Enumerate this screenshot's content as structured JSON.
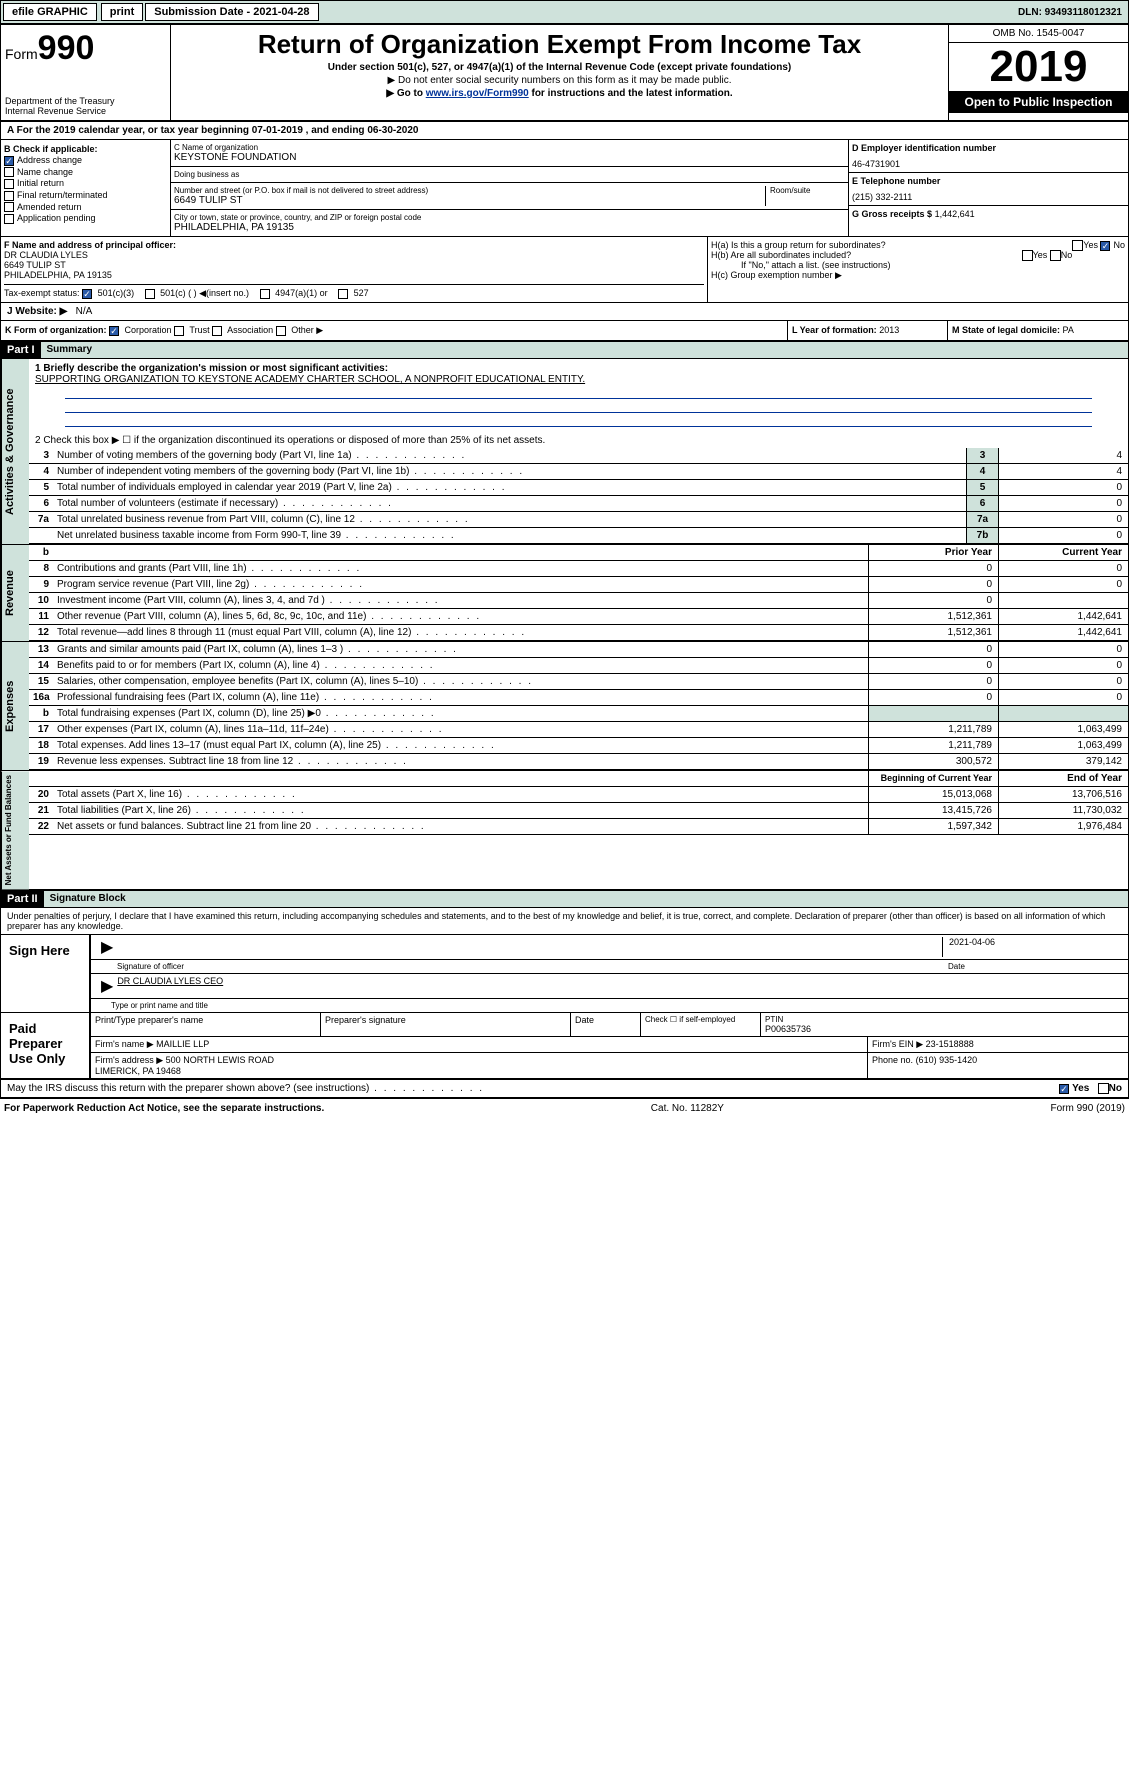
{
  "topbar": {
    "efile": "efile GRAPHIC",
    "print": "print",
    "subdate_label": "Submission Date - 2021-04-28",
    "dln": "DLN: 93493118012321"
  },
  "header": {
    "form_prefix": "Form",
    "form_num": "990",
    "dept": "Department of the Treasury\nInternal Revenue Service",
    "title": "Return of Organization Exempt From Income Tax",
    "sub1": "Under section 501(c), 527, or 4947(a)(1) of the Internal Revenue Code (except private foundations)",
    "sub2": "▶ Do not enter social security numbers on this form as it may be made public.",
    "sub3_pre": "▶ Go to ",
    "sub3_link": "www.irs.gov/Form990",
    "sub3_post": " for instructions and the latest information.",
    "omb": "OMB No. 1545-0047",
    "year": "2019",
    "open": "Open to Public Inspection"
  },
  "row_a": "A For the 2019 calendar year, or tax year beginning 07-01-2019    , and ending 06-30-2020",
  "col_b": {
    "label": "B Check if applicable:",
    "items": [
      "Address change",
      "Name change",
      "Initial return",
      "Final return/terminated",
      "Amended return",
      "Application pending"
    ],
    "checked": [
      true,
      false,
      false,
      false,
      false,
      false
    ]
  },
  "col_c": {
    "name_lbl": "C Name of organization",
    "name": "KEYSTONE FOUNDATION",
    "dba_lbl": "Doing business as",
    "dba": "",
    "addr_lbl": "Number and street (or P.O. box if mail is not delivered to street address)",
    "room_lbl": "Room/suite",
    "addr": "6649 TULIP ST",
    "city_lbl": "City or town, state or province, country, and ZIP or foreign postal code",
    "city": "PHILADELPHIA, PA  19135"
  },
  "col_d": {
    "ein_lbl": "D Employer identification number",
    "ein": "46-4731901",
    "tel_lbl": "E Telephone number",
    "tel": "(215) 332-2111",
    "gross_lbl": "G Gross receipts $",
    "gross": "1,442,641"
  },
  "row_f": {
    "f_lbl": "F Name and address of principal officer:",
    "f_val": "DR CLAUDIA LYLES\n6649 TULIP ST\nPHILADELPHIA, PA  19135",
    "ha": "H(a)  Is this a group return for subordinates?",
    "hb": "H(b)  Are all subordinates included?",
    "hb_note": "If \"No,\" attach a list. (see instructions)",
    "hc": "H(c)  Group exemption number ▶",
    "yes": "Yes",
    "no": "No"
  },
  "tax_status": {
    "lbl": "Tax-exempt status:",
    "opts": [
      "501(c)(3)",
      "501(c) (  ) ◀(insert no.)",
      "4947(a)(1) or",
      "527"
    ]
  },
  "website": {
    "lbl": "J   Website: ▶",
    "val": "N/A"
  },
  "row_k": {
    "k": "K Form of organization:",
    "opts": [
      "Corporation",
      "Trust",
      "Association",
      "Other ▶"
    ],
    "l_lbl": "L Year of formation:",
    "l_val": "2013",
    "m_lbl": "M State of legal domicile:",
    "m_val": "PA"
  },
  "part1": {
    "label": "Part I",
    "title": "Summary"
  },
  "summary": {
    "line1_lbl": "1  Briefly describe the organization's mission or most significant activities:",
    "line1_val": "SUPPORTING ORGANIZATION TO KEYSTONE ACADEMY CHARTER SCHOOL, A NONPROFIT EDUCATIONAL ENTITY.",
    "line2": "2   Check this box ▶ ☐  if the organization discontinued its operations or disposed of more than 25% of its net assets.",
    "rows_simple": [
      {
        "n": "3",
        "t": "Number of voting members of the governing body (Part VI, line 1a)",
        "box": "3",
        "v": "4"
      },
      {
        "n": "4",
        "t": "Number of independent voting members of the governing body (Part VI, line 1b)",
        "box": "4",
        "v": "4"
      },
      {
        "n": "5",
        "t": "Total number of individuals employed in calendar year 2019 (Part V, line 2a)",
        "box": "5",
        "v": "0"
      },
      {
        "n": "6",
        "t": "Total number of volunteers (estimate if necessary)",
        "box": "6",
        "v": "0"
      },
      {
        "n": "7a",
        "t": "Total unrelated business revenue from Part VIII, column (C), line 12",
        "box": "7a",
        "v": "0"
      },
      {
        "n": "",
        "t": "Net unrelated business taxable income from Form 990-T, line 39",
        "box": "7b",
        "v": "0"
      }
    ],
    "col_hdr_b": "b",
    "col_prior": "Prior Year",
    "col_current": "Current Year",
    "rows_rev": [
      {
        "n": "8",
        "t": "Contributions and grants (Part VIII, line 1h)",
        "p": "0",
        "c": "0"
      },
      {
        "n": "9",
        "t": "Program service revenue (Part VIII, line 2g)",
        "p": "0",
        "c": "0"
      },
      {
        "n": "10",
        "t": "Investment income (Part VIII, column (A), lines 3, 4, and 7d )",
        "p": "0",
        "c": ""
      },
      {
        "n": "11",
        "t": "Other revenue (Part VIII, column (A), lines 5, 6d, 8c, 9c, 10c, and 11e)",
        "p": "1,512,361",
        "c": "1,442,641"
      },
      {
        "n": "12",
        "t": "Total revenue—add lines 8 through 11 (must equal Part VIII, column (A), line 12)",
        "p": "1,512,361",
        "c": "1,442,641"
      }
    ],
    "rows_exp": [
      {
        "n": "13",
        "t": "Grants and similar amounts paid (Part IX, column (A), lines 1–3 )",
        "p": "0",
        "c": "0"
      },
      {
        "n": "14",
        "t": "Benefits paid to or for members (Part IX, column (A), line 4)",
        "p": "0",
        "c": "0"
      },
      {
        "n": "15",
        "t": "Salaries, other compensation, employee benefits (Part IX, column (A), lines 5–10)",
        "p": "0",
        "c": "0"
      },
      {
        "n": "16a",
        "t": "Professional fundraising fees (Part IX, column (A), line 11e)",
        "p": "0",
        "c": "0"
      },
      {
        "n": "b",
        "t": "Total fundraising expenses (Part IX, column (D), line 25) ▶0",
        "p": "",
        "c": "",
        "shade": true
      },
      {
        "n": "17",
        "t": "Other expenses (Part IX, column (A), lines 11a–11d, 11f–24e)",
        "p": "1,211,789",
        "c": "1,063,499"
      },
      {
        "n": "18",
        "t": "Total expenses. Add lines 13–17 (must equal Part IX, column (A), line 25)",
        "p": "1,211,789",
        "c": "1,063,499"
      },
      {
        "n": "19",
        "t": "Revenue less expenses. Subtract line 18 from line 12",
        "p": "300,572",
        "c": "379,142"
      }
    ],
    "col_begin": "Beginning of Current Year",
    "col_end": "End of Year",
    "rows_net": [
      {
        "n": "20",
        "t": "Total assets (Part X, line 16)",
        "p": "15,013,068",
        "c": "13,706,516"
      },
      {
        "n": "21",
        "t": "Total liabilities (Part X, line 26)",
        "p": "13,415,726",
        "c": "11,730,032"
      },
      {
        "n": "22",
        "t": "Net assets or fund balances. Subtract line 21 from line 20",
        "p": "1,597,342",
        "c": "1,976,484"
      }
    ]
  },
  "vtabs": {
    "gov": "Activities & Governance",
    "rev": "Revenue",
    "exp": "Expenses",
    "net": "Net Assets or Fund Balances"
  },
  "part2": {
    "label": "Part II",
    "title": "Signature Block"
  },
  "perjury": "Under penalties of perjury, I declare that I have examined this return, including accompanying schedules and statements, and to the best of my knowledge and belief, it is true, correct, and complete. Declaration of preparer (other than officer) is based on all information of which preparer has any knowledge.",
  "sign": {
    "here": "Sign Here",
    "sig_officer": "Signature of officer",
    "date": "2021-04-06",
    "date_lbl": "Date",
    "name": "DR CLAUDIA LYLES  CEO",
    "name_lbl": "Type or print name and title"
  },
  "paid": {
    "title": "Paid Preparer Use Only",
    "h1": "Print/Type preparer's name",
    "h2": "Preparer's signature",
    "h3": "Date",
    "h4_a": "Check ☐ if self-employed",
    "h4_b": "PTIN",
    "ptin": "P00635736",
    "firm_name_lbl": "Firm's name    ▶",
    "firm_name": "MAILLIE LLP",
    "firm_ein_lbl": "Firm's EIN ▶",
    "firm_ein": "23-1518888",
    "firm_addr_lbl": "Firm's address ▶",
    "firm_addr": "500 NORTH LEWIS ROAD\nLIMERICK, PA  19468",
    "phone_lbl": "Phone no.",
    "phone": "(610) 935-1420"
  },
  "discuss": "May the IRS discuss this return with the preparer shown above? (see instructions)",
  "footer": {
    "left": "For Paperwork Reduction Act Notice, see the separate instructions.",
    "mid": "Cat. No. 11282Y",
    "right": "Form 990 (2019)"
  }
}
